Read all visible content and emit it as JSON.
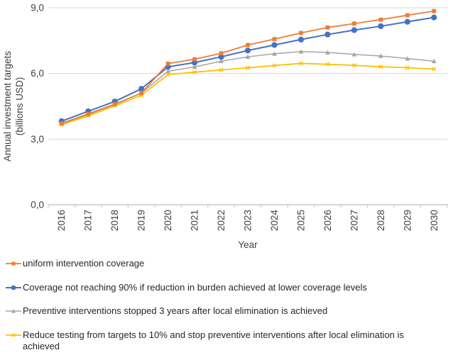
{
  "chart_data": {
    "type": "line",
    "title": "",
    "xlabel": "Year",
    "ylabel": "Annual investment targets (billions USD)",
    "ylabel_lines": [
      "Annual investment targets",
      "(billions USD)"
    ],
    "categories": [
      "2016",
      "2017",
      "2018",
      "2019",
      "2020",
      "2021",
      "2022",
      "2023",
      "2024",
      "2025",
      "2026",
      "2027",
      "2028",
      "2029",
      "2030"
    ],
    "ylim": [
      0,
      9
    ],
    "y_ticks": [
      0,
      3,
      6,
      9
    ],
    "y_tick_labels": [
      "0,0",
      "3,0",
      "6,0",
      "9,0"
    ],
    "grid": true,
    "legend_position": "bottom-left",
    "series": [
      {
        "name": "uniform intervention coverage",
        "color": "#ED7D31",
        "marker": "square",
        "values": [
          3.72,
          4.15,
          4.6,
          5.1,
          6.45,
          6.65,
          6.92,
          7.3,
          7.57,
          7.85,
          8.1,
          8.28,
          8.46,
          8.66,
          8.85
        ]
      },
      {
        "name": "Coverage not reaching 90% if reduction in burden achieved at lower coverage levels",
        "color": "#4472C4",
        "marker": "circle",
        "values": [
          3.82,
          4.27,
          4.72,
          5.3,
          6.3,
          6.5,
          6.76,
          7.05,
          7.3,
          7.55,
          7.78,
          7.98,
          8.16,
          8.36,
          8.56
        ]
      },
      {
        "name": "Preventive interventions stopped 3 years after local elimination is achieved",
        "color": "#A5A5A5",
        "marker": "triangle",
        "values": [
          3.7,
          4.12,
          4.58,
          5.1,
          6.1,
          6.3,
          6.56,
          6.76,
          6.9,
          7.0,
          6.96,
          6.87,
          6.8,
          6.68,
          6.56
        ]
      },
      {
        "name": "Reduce testing from targets to 10% and stop preventive interventions after local elimination is achieved",
        "color": "#FFC000",
        "marker": "x",
        "values": [
          3.66,
          4.06,
          4.52,
          5.0,
          5.95,
          6.06,
          6.16,
          6.26,
          6.36,
          6.46,
          6.42,
          6.37,
          6.31,
          6.26,
          6.2
        ]
      }
    ],
    "style": {
      "gridline_color": "#D9D9D9",
      "axis_line_color": "#BFBFBF",
      "tick_label_color": "#404040",
      "legend_text_color": "#262626"
    }
  }
}
